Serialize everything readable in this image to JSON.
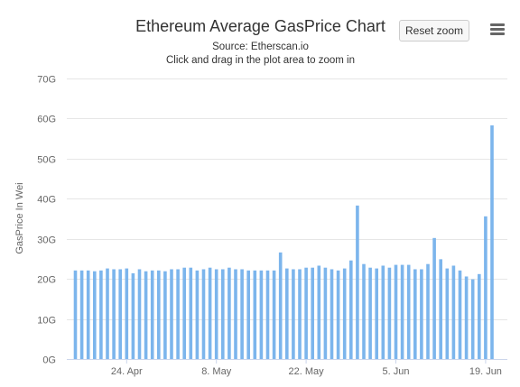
{
  "header": {
    "title": "Ethereum Average GasPrice Chart",
    "subtitle_source": "Source: Etherscan.io",
    "subtitle_hint": "Click and drag in the plot area to zoom in"
  },
  "toolbar": {
    "reset_zoom_label": "Reset zoom",
    "menu_icon": "hamburger-menu-icon"
  },
  "colors": {
    "bar": "#7cb5ec",
    "grid": "#e6e6e6",
    "axis_text": "#666666"
  },
  "chart_data": {
    "type": "bar",
    "title": "Ethereum Average GasPrice Chart",
    "subtitle": "Source: Etherscan.io",
    "ylabel": "GasPrice In Wei",
    "xlabel": "",
    "ylim": [
      0,
      70
    ],
    "y_unit": "G",
    "y_ticks": [
      "0G",
      "10G",
      "20G",
      "30G",
      "40G",
      "50G",
      "60G",
      "70G"
    ],
    "x_ticks": [
      "24. Apr",
      "8. May",
      "22. May",
      "5. Jun",
      "19. Jun"
    ],
    "grid": true,
    "legend": "none",
    "first_date": "2017-04-16",
    "x_tick_dates": [
      "2017-04-24",
      "2017-05-08",
      "2017-05-22",
      "2017-06-05",
      "2017-06-19"
    ],
    "values": [
      22.1,
      22.1,
      22.1,
      21.9,
      22.1,
      22.6,
      22.4,
      22.4,
      22.6,
      21.4,
      22.4,
      21.9,
      22.1,
      22.1,
      21.9,
      22.4,
      22.4,
      22.8,
      22.8,
      22.1,
      22.4,
      22.8,
      22.4,
      22.4,
      22.8,
      22.4,
      22.4,
      22.1,
      22.1,
      22.1,
      22.1,
      22.1,
      26.6,
      22.6,
      22.4,
      22.4,
      22.8,
      22.8,
      23.3,
      22.8,
      22.4,
      22.1,
      22.6,
      24.6,
      38.3,
      23.7,
      22.8,
      22.6,
      23.3,
      22.8,
      23.5,
      23.5,
      23.5,
      22.4,
      22.4,
      23.7,
      30.2,
      24.9,
      22.6,
      23.3,
      22.1,
      20.6,
      19.9,
      21.2,
      35.6,
      58.3
    ]
  }
}
